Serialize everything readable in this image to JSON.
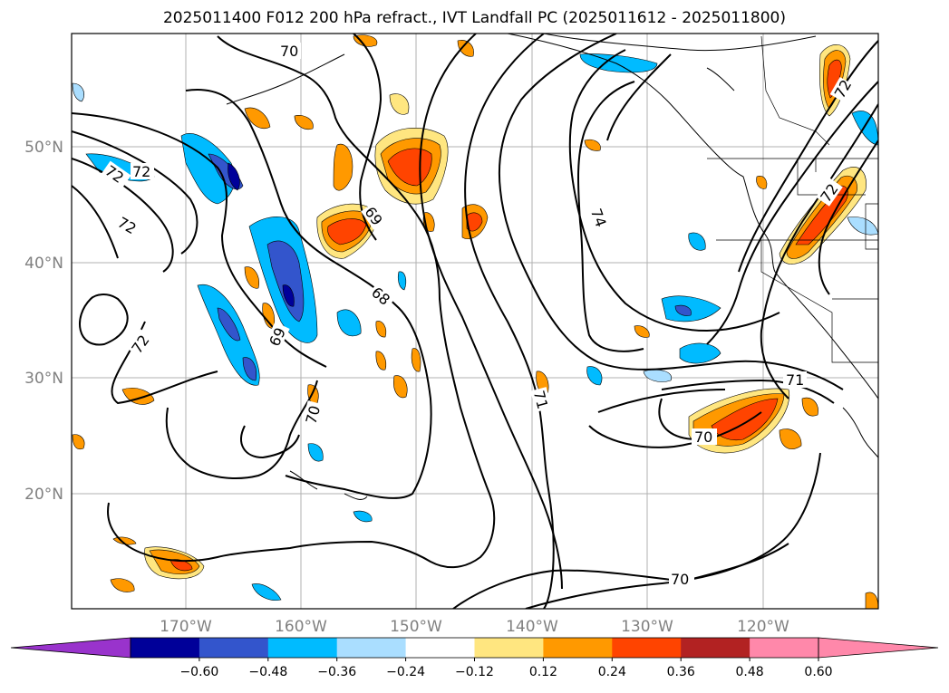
{
  "title": "2025011400 F012 200 hPa refract., IVT Landfall PC (2025011612 - 2025011800)",
  "map": {
    "lat_labels": [
      "50°N",
      "40°N",
      "30°N",
      "20°N"
    ],
    "lon_labels": [
      "170°W",
      "160°W",
      "150°W",
      "140°W",
      "130°W",
      "120°W"
    ],
    "grid": true
  },
  "contour_labels": [
    "70",
    "72",
    "72",
    "72",
    "69",
    "68",
    "69",
    "70",
    "74",
    "71",
    "71",
    "70",
    "70",
    "72",
    "72",
    "72"
  ],
  "colorbar": {
    "ticks": [
      "−0.60",
      "−0.48",
      "−0.36",
      "−0.24",
      "−0.12",
      "0.12",
      "0.24",
      "0.36",
      "0.48",
      "0.60"
    ],
    "colors": [
      "#9933cc",
      "#000099",
      "#3355cc",
      "#00bbff",
      "#aadeff",
      "#ffffff",
      "#ffe680",
      "#ff9900",
      "#ff4400",
      "#b22222",
      "#ff88aa",
      "#ff88aa"
    ]
  }
}
